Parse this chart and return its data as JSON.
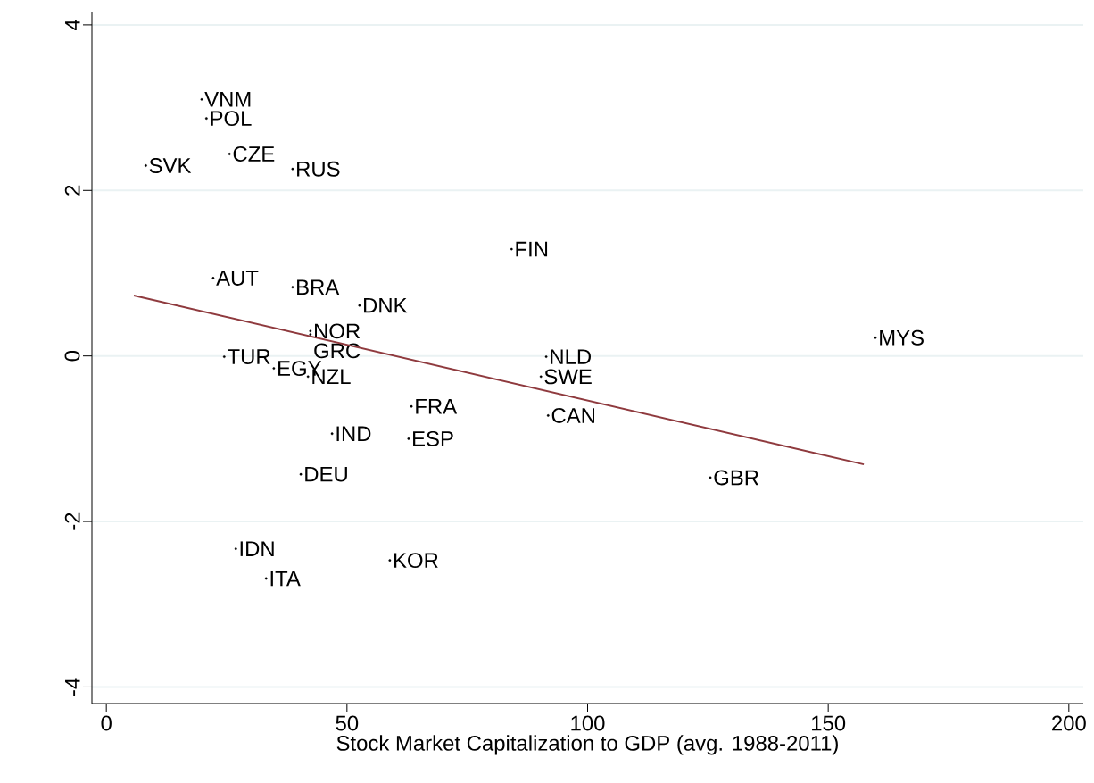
{
  "chart_data": {
    "type": "scatter",
    "xlabel": "Stock Market Capitalization to GDP (avg. 1988-2011)",
    "xlim": [
      -3,
      203
    ],
    "ylim": [
      -4.2,
      4.15
    ],
    "xticks": [
      0,
      50,
      100,
      150,
      200
    ],
    "yticks": [
      -4,
      -2,
      0,
      2,
      4
    ],
    "grid": "y",
    "series": [
      {
        "type": "scatter",
        "marker": "circle",
        "color": "#000000",
        "x": [
          19.8,
          20.8,
          8.2,
          25.6,
          38.7,
          84.2,
          22.2,
          38.7,
          52.6,
          42.4,
          42.4,
          24.5,
          34.8,
          41.9,
          91.4,
          90.3,
          159.8,
          63.4,
          91.8,
          46.9,
          62.8,
          40.4,
          125.5,
          26.9,
          58.9,
          33.2
        ],
        "values": [
          3.1,
          2.87,
          2.3,
          2.44,
          2.26,
          1.29,
          0.94,
          0.83,
          0.61,
          0.3,
          0.26,
          -0.01,
          -0.15,
          -0.25,
          -0.01,
          -0.25,
          0.22,
          -0.61,
          -0.72,
          -0.94,
          -1.0,
          -1.43,
          -1.47,
          -2.33,
          -2.47,
          -2.69
        ],
        "value_labels": [
          "VNM",
          "POL",
          "SVK",
          "CZE",
          "RUS",
          "FIN",
          "AUT",
          "BRA",
          "DNK",
          "NOR",
          "GRC",
          "TUR",
          "EGY",
          "NZL",
          "NLD",
          "SWE",
          "MYS",
          "FRA",
          "CAN",
          "IND",
          "ESP",
          "DEU",
          "GBR",
          "IDN",
          "KOR",
          "ITA"
        ]
      },
      {
        "type": "line",
        "marker": "none",
        "line_style": "solid",
        "color": "#8f3a3e",
        "x": [
          5.7,
          157.4
        ],
        "values": [
          0.73,
          -1.31
        ]
      }
    ]
  }
}
